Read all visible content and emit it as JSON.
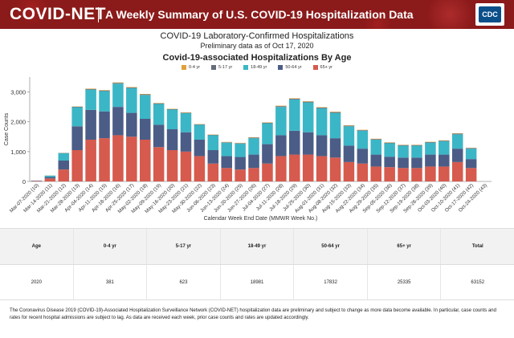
{
  "header": {
    "logo_text": "COVID-NET",
    "tagline": "A Weekly Summary of U.S. COVID-19 Hospitalization Data",
    "badge_text": "CDC"
  },
  "colors": {
    "0-4 yr": "#e0a13a",
    "5-17 yr": "#666d7a",
    "18-49 yr": "#3bb6c6",
    "50-64 yr": "#4b5d86",
    "65+ yr": "#d65a4e"
  },
  "chart_data": {
    "type": "bar",
    "stacked": true,
    "title": "COVID-19 Laboratory-Confirmed Hospitalizations",
    "subtitle": "Preliminary data as of Oct 17, 2020",
    "chart_title": "Covid-19-associated Hospitalizations By Age",
    "xlabel": "Calendar Week End Date (MMWR Week No.)",
    "ylabel": "Case Counts",
    "ylim": [
      0,
      3500
    ],
    "yticks": [
      0,
      1000,
      2000,
      3000
    ],
    "yticks_labels": [
      "0",
      "1,000",
      "2,000",
      "3,000"
    ],
    "legend_position": "top-center",
    "categories": [
      "Mar-07-2020 (10)",
      "Mar-14-2020 (11)",
      "Mar-21-2020 (12)",
      "Mar-28-2020 (13)",
      "Apr-04-2020 (14)",
      "Apr-11-2020 (15)",
      "Apr-18-2020 (16)",
      "Apr-25-2020 (17)",
      "May-02-2020 (18)",
      "May-09-2020 (19)",
      "May-16-2020 (20)",
      "May-23-2020 (21)",
      "May-30-2020 (22)",
      "Jun-06-2020 (23)",
      "Jun-13-2020 (24)",
      "Jun-20-2020 (25)",
      "Jun-27-2020 (26)",
      "Jul-04-2020 (27)",
      "Jul-11-2020 (28)",
      "Jul-18-2020 (29)",
      "Jul-25-2020 (30)",
      "Aug-01-2020 (31)",
      "Aug-08-2020 (32)",
      "Aug-15-2020 (33)",
      "Aug-22-2020 (34)",
      "Aug-29-2020 (35)",
      "Sep-05-2020 (36)",
      "Sep-12-2020 (37)",
      "Sep-19-2020 (38)",
      "Sep-26-2020 (39)",
      "Oct-03-2020 (40)",
      "Oct-10-2020 (41)",
      "Oct-17-2020 (42)",
      "Oct-24-2020 (43)"
    ],
    "series": [
      {
        "name": "0-4 yr",
        "values": [
          0,
          2,
          5,
          10,
          15,
          15,
          15,
          15,
          15,
          12,
          12,
          12,
          10,
          10,
          10,
          10,
          12,
          12,
          15,
          15,
          15,
          15,
          15,
          12,
          12,
          12,
          12,
          10,
          10,
          10,
          10,
          12,
          8,
          0
        ]
      },
      {
        "name": "5-17 yr",
        "values": [
          0,
          3,
          5,
          15,
          20,
          20,
          25,
          20,
          20,
          20,
          15,
          15,
          15,
          15,
          15,
          15,
          20,
          20,
          25,
          25,
          25,
          25,
          25,
          20,
          20,
          20,
          20,
          20,
          20,
          20,
          20,
          25,
          18,
          0
        ]
      },
      {
        "name": "18-49 yr",
        "values": [
          5,
          45,
          250,
          640,
          680,
          680,
          780,
          830,
          800,
          700,
          660,
          640,
          500,
          500,
          450,
          450,
          550,
          700,
          950,
          1050,
          1000,
          900,
          850,
          650,
          600,
          500,
          450,
          400,
          400,
          400,
          450,
          480,
          350,
          0
        ]
      },
      {
        "name": "50-64 yr",
        "values": [
          10,
          50,
          300,
          800,
          1000,
          900,
          950,
          800,
          700,
          750,
          700,
          650,
          550,
          450,
          400,
          420,
          450,
          650,
          700,
          800,
          750,
          700,
          650,
          550,
          500,
          400,
          350,
          350,
          350,
          400,
          400,
          450,
          300,
          0
        ]
      },
      {
        "name": "65+ yr",
        "values": [
          15,
          100,
          400,
          1050,
          1400,
          1450,
          1550,
          1500,
          1400,
          1150,
          1050,
          1000,
          850,
          600,
          450,
          400,
          450,
          600,
          850,
          900,
          900,
          850,
          800,
          650,
          600,
          500,
          480,
          450,
          450,
          500,
          500,
          650,
          450,
          0
        ]
      }
    ]
  },
  "table": {
    "headers": [
      "Age",
      "0-4 yr",
      "5-17 yr",
      "18-49 yr",
      "50-64 yr",
      "65+ yr",
      "Total"
    ],
    "rows": [
      [
        "2020",
        "381",
        "623",
        "18981",
        "17832",
        "25335",
        "63152"
      ]
    ]
  },
  "footnote": "The Coronavirus Disease 2019 (COVID-19)-Associated Hospitalization Surveillance Network (COVID-NET) hospitalization data are preliminary and subject to change as more data become available. In particular, case counts and rates for recent hospital admissions are subject to lag. As data are received each week, prior case counts and rates are updated accordingly."
}
